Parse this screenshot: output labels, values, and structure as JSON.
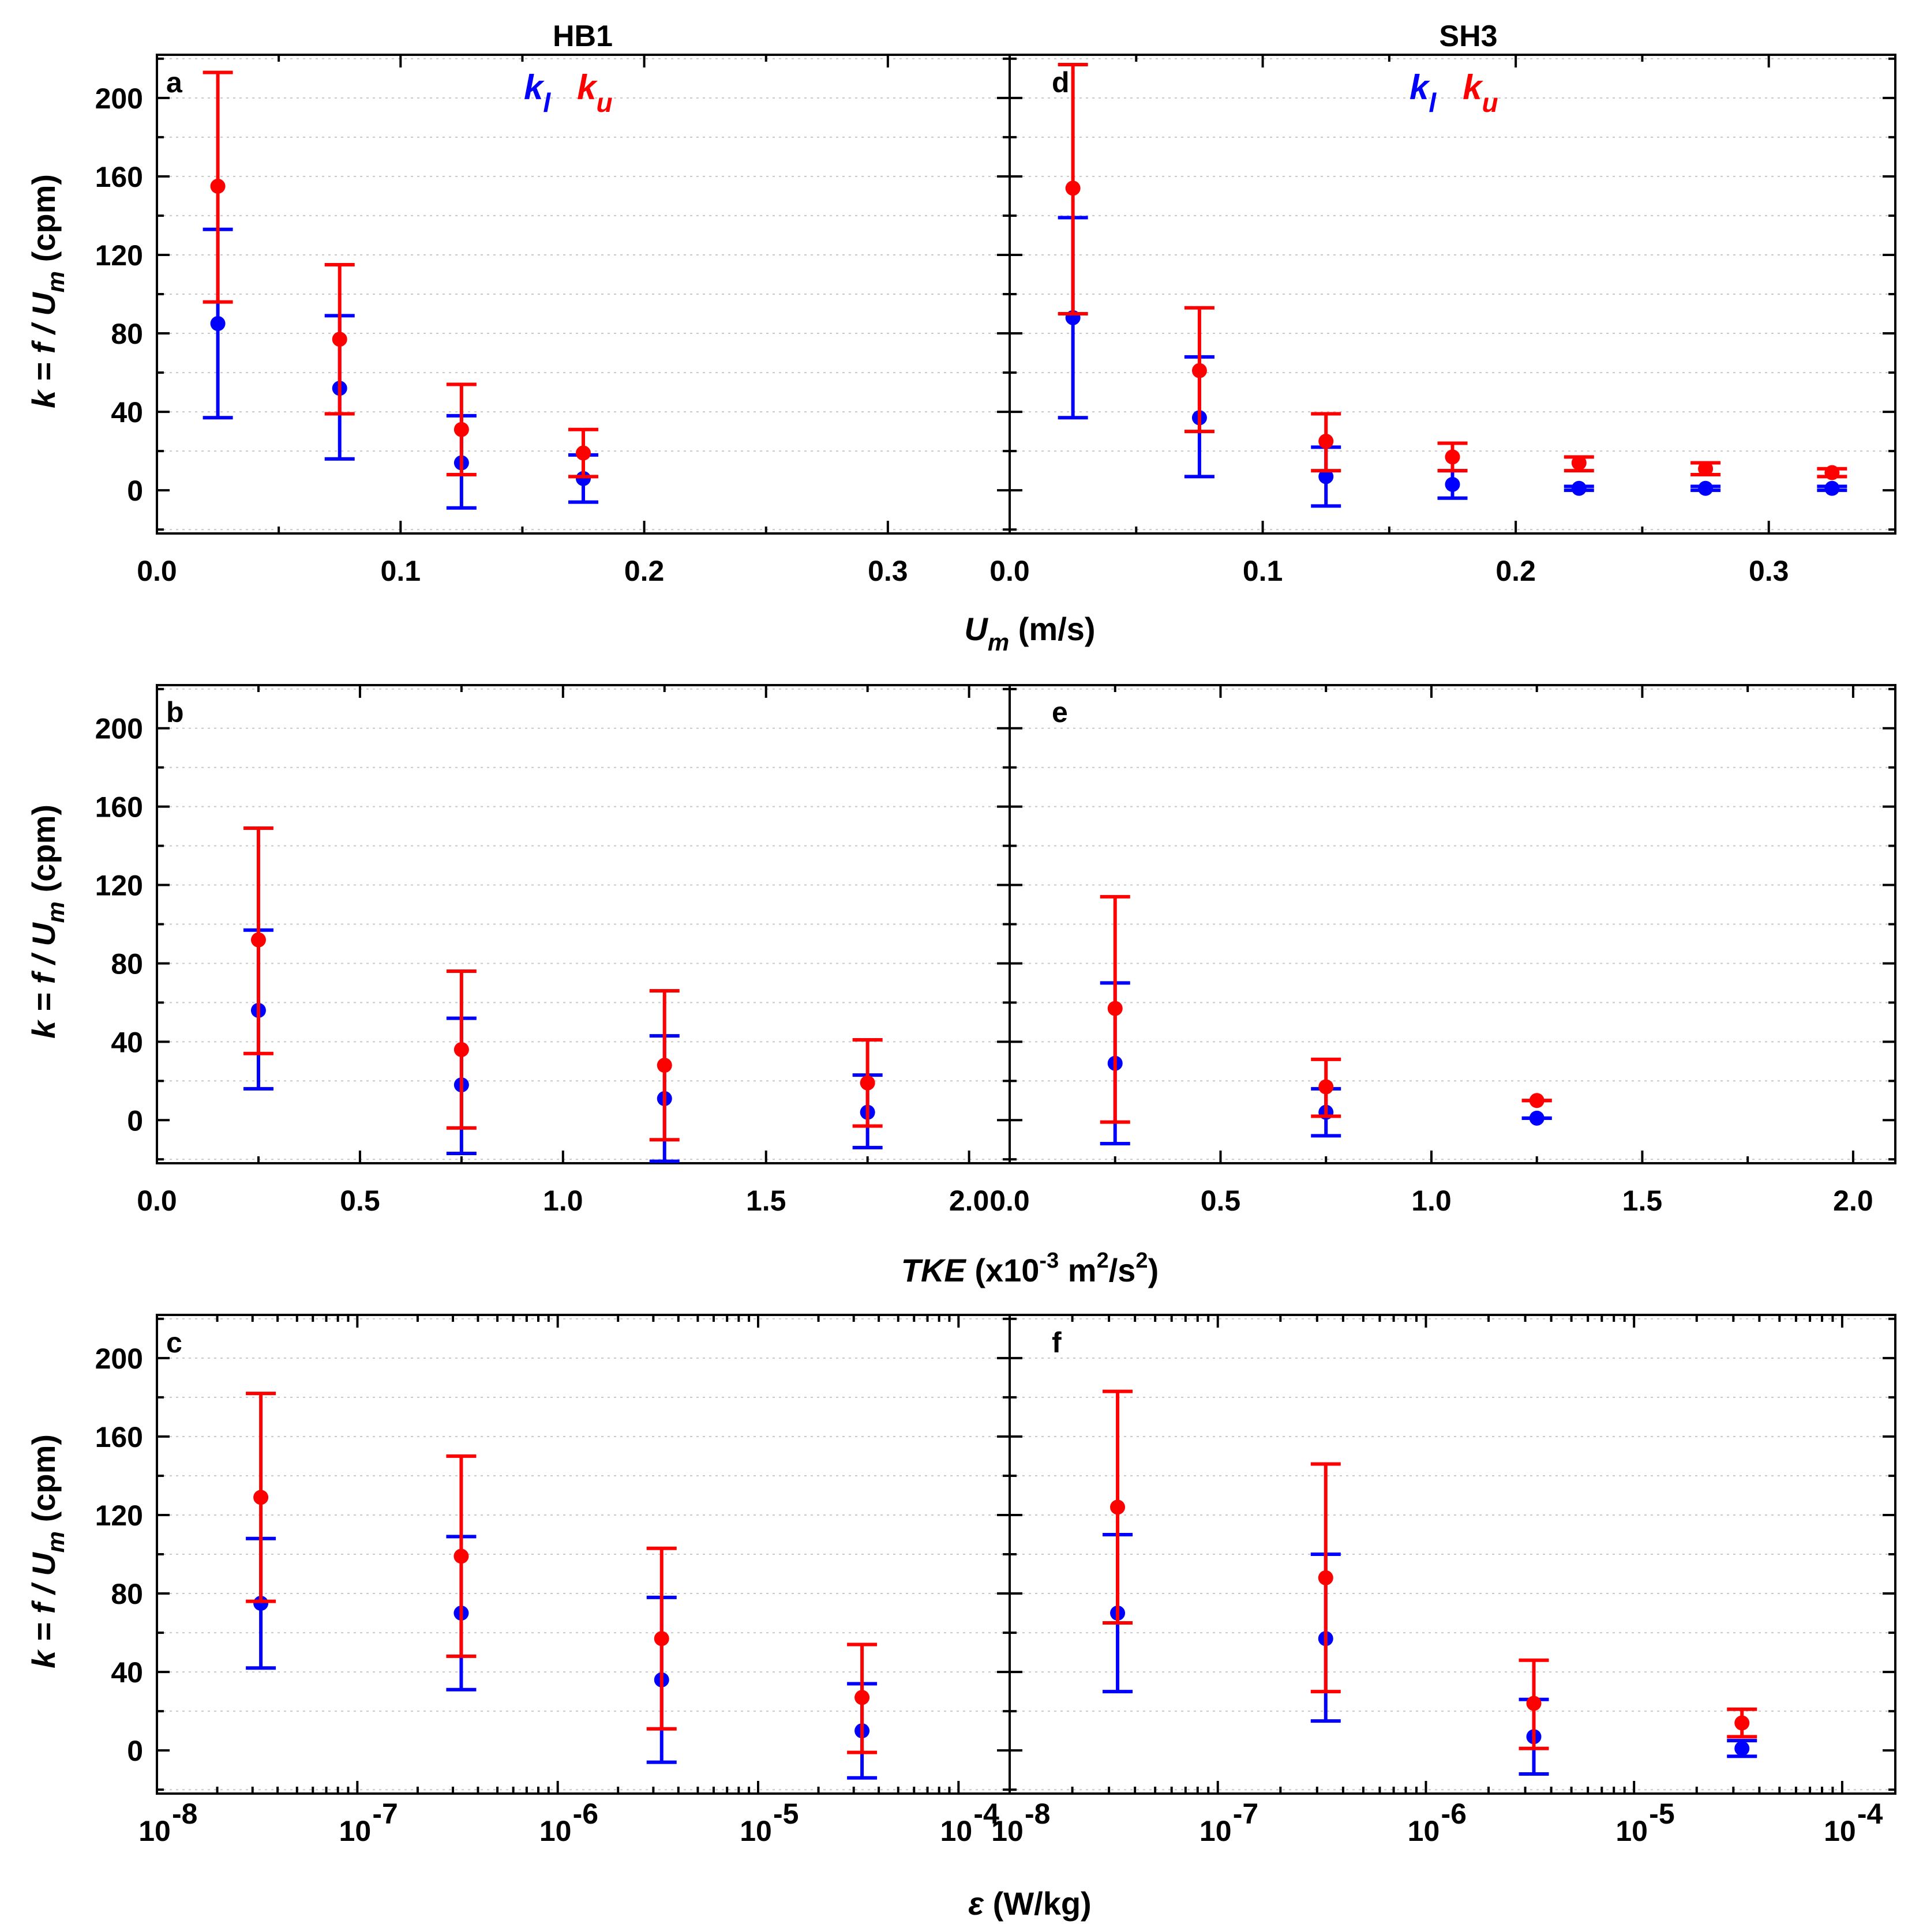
{
  "chart_data": [
    {
      "panel": "a",
      "type": "scatter",
      "column_title": "HB1",
      "xscale": "linear",
      "xlim": [
        0,
        0.35
      ],
      "ylim": [
        -22,
        222
      ],
      "xticks": [
        0.0,
        0.1,
        0.2,
        0.3
      ],
      "xtick_labels": [
        "0.0",
        "0.1",
        "0.2",
        "0.3"
      ],
      "yticks": [
        0,
        40,
        80,
        120,
        160,
        200
      ],
      "ytick_labels": [
        "0",
        "40",
        "80",
        "120",
        "160",
        "200"
      ],
      "ylabel": "k = f / Um (cpm)",
      "legend": [
        "kl",
        "ku"
      ],
      "series": [
        {
          "name": "kl",
          "color": "#0000ff",
          "x": [
            0.025,
            0.075,
            0.125,
            0.175
          ],
          "y": [
            85,
            52,
            14,
            6
          ],
          "lo": [
            37,
            16,
            -9,
            -6
          ],
          "hi": [
            133,
            89,
            38,
            18
          ]
        },
        {
          "name": "ku",
          "color": "#ff0000",
          "x": [
            0.025,
            0.075,
            0.125,
            0.175
          ],
          "y": [
            155,
            77,
            31,
            19
          ],
          "lo": [
            96,
            39,
            8,
            7
          ],
          "hi": [
            213,
            115,
            54,
            31
          ]
        }
      ]
    },
    {
      "panel": "d",
      "type": "scatter",
      "column_title": "SH3",
      "xscale": "linear",
      "xlim": [
        0,
        0.35
      ],
      "ylim": [
        -22,
        222
      ],
      "xticks": [
        0.0,
        0.1,
        0.2,
        0.3
      ],
      "xtick_labels": [
        "0.0",
        "0.1",
        "0.2",
        "0.3"
      ],
      "yticks": [
        0,
        40,
        80,
        120,
        160,
        200
      ],
      "ytick_labels": [],
      "legend": [
        "kl",
        "ku"
      ],
      "series": [
        {
          "name": "kl",
          "color": "#0000ff",
          "x": [
            0.025,
            0.075,
            0.125,
            0.175,
            0.225,
            0.275,
            0.325
          ],
          "y": [
            88,
            37,
            7,
            3,
            1,
            1,
            1
          ],
          "lo": [
            37,
            7,
            -8,
            -4,
            0,
            0,
            0
          ],
          "hi": [
            139,
            68,
            22,
            10,
            2,
            2,
            2
          ]
        },
        {
          "name": "ku",
          "color": "#ff0000",
          "x": [
            0.025,
            0.075,
            0.125,
            0.175,
            0.225,
            0.275,
            0.325
          ],
          "y": [
            154,
            61,
            25,
            17,
            14,
            11,
            9
          ],
          "lo": [
            90,
            30,
            10,
            10,
            10,
            8,
            7
          ],
          "hi": [
            217,
            93,
            39,
            24,
            17,
            14,
            11
          ]
        }
      ]
    },
    {
      "panel": "b",
      "type": "scatter",
      "xscale": "linear",
      "xlim": [
        0,
        2.1
      ],
      "ylim": [
        -22,
        222
      ],
      "xticks": [
        0.0,
        0.5,
        1.0,
        1.5,
        2.0
      ],
      "xtick_labels": [
        "0.0",
        "0.5",
        "1.0",
        "1.5",
        "2.0"
      ],
      "yticks": [
        0,
        40,
        80,
        120,
        160,
        200
      ],
      "ytick_labels": [
        "0",
        "40",
        "80",
        "120",
        "160",
        "200"
      ],
      "ylabel": "k = f / Um (cpm)",
      "series": [
        {
          "name": "kl",
          "color": "#0000ff",
          "x": [
            0.25,
            0.75,
            1.25,
            1.75
          ],
          "y": [
            56,
            18,
            11,
            4
          ],
          "lo": [
            16,
            -17,
            -21,
            -14
          ],
          "hi": [
            97,
            52,
            43,
            23
          ]
        },
        {
          "name": "ku",
          "color": "#ff0000",
          "x": [
            0.25,
            0.75,
            1.25,
            1.75
          ],
          "y": [
            92,
            36,
            28,
            19
          ],
          "lo": [
            34,
            -4,
            -10,
            -3
          ],
          "hi": [
            149,
            76,
            66,
            41
          ]
        }
      ]
    },
    {
      "panel": "e",
      "type": "scatter",
      "xscale": "linear",
      "xlim": [
        0,
        2.1
      ],
      "ylim": [
        -22,
        222
      ],
      "xticks": [
        0.0,
        0.5,
        1.0,
        1.5,
        2.0
      ],
      "xtick_labels": [
        "0.0",
        "0.5",
        "1.0",
        "1.5",
        "2.0"
      ],
      "yticks": [
        0,
        40,
        80,
        120,
        160,
        200
      ],
      "ytick_labels": [],
      "series": [
        {
          "name": "kl",
          "color": "#0000ff",
          "x": [
            0.25,
            0.75,
            1.25
          ],
          "y": [
            29,
            4,
            1
          ],
          "lo": [
            -12,
            -8,
            1
          ],
          "hi": [
            70,
            16,
            1
          ]
        },
        {
          "name": "ku",
          "color": "#ff0000",
          "x": [
            0.25,
            0.75,
            1.25
          ],
          "y": [
            57,
            17,
            10
          ],
          "lo": [
            -1,
            2,
            10
          ],
          "hi": [
            114,
            31,
            10
          ]
        }
      ]
    },
    {
      "panel": "c",
      "type": "scatter",
      "xscale": "log",
      "xlim": [
        1e-08,
        0.00018
      ],
      "ylim": [
        -22,
        222
      ],
      "xticks": [
        1e-08,
        1e-07,
        1e-06,
        1e-05,
        0.0001
      ],
      "xtick_labels": [
        "10",
        "10",
        "10",
        "10",
        "10"
      ],
      "xtick_exponents": [
        "-8",
        "-7",
        "-6",
        "-5",
        "-4"
      ],
      "yticks": [
        0,
        40,
        80,
        120,
        160,
        200
      ],
      "ytick_labels": [
        "0",
        "40",
        "80",
        "120",
        "160",
        "200"
      ],
      "ylabel": "k = f / Um (cpm)",
      "series": [
        {
          "name": "kl",
          "color": "#0000ff",
          "x": [
            3.3e-08,
            3.3e-07,
            3.3e-06,
            3.3e-05
          ],
          "y": [
            75,
            70,
            36,
            10
          ],
          "lo": [
            42,
            31,
            -6,
            -14
          ],
          "hi": [
            108,
            109,
            78,
            34
          ]
        },
        {
          "name": "ku",
          "color": "#ff0000",
          "x": [
            3.3e-08,
            3.3e-07,
            3.3e-06,
            3.3e-05
          ],
          "y": [
            129,
            99,
            57,
            27
          ],
          "lo": [
            76,
            48,
            11,
            -1
          ],
          "hi": [
            182,
            150,
            103,
            54
          ]
        }
      ]
    },
    {
      "panel": "f",
      "type": "scatter",
      "xscale": "log",
      "xlim": [
        1e-08,
        0.00018
      ],
      "ylim": [
        -22,
        222
      ],
      "xticks": [
        1e-08,
        1e-07,
        1e-06,
        1e-05,
        0.0001
      ],
      "xtick_labels": [
        "10",
        "10",
        "10",
        "10",
        "10"
      ],
      "xtick_exponents": [
        "-8",
        "-7",
        "-6",
        "-5",
        "-4"
      ],
      "yticks": [
        0,
        40,
        80,
        120,
        160,
        200
      ],
      "ytick_labels": [],
      "series": [
        {
          "name": "kl",
          "color": "#0000ff",
          "x": [
            3.3e-08,
            3.3e-07,
            3.3e-06,
            3.3e-05
          ],
          "y": [
            70,
            57,
            7,
            1
          ],
          "lo": [
            30,
            15,
            -12,
            -3
          ],
          "hi": [
            110,
            100,
            26,
            5
          ]
        },
        {
          "name": "ku",
          "color": "#ff0000",
          "x": [
            3.3e-08,
            3.3e-07,
            3.3e-06,
            3.3e-05
          ],
          "y": [
            124,
            88,
            24,
            14
          ],
          "lo": [
            65,
            30,
            1,
            7
          ],
          "hi": [
            183,
            146,
            46,
            21
          ]
        }
      ]
    }
  ],
  "labels": {
    "col_left": "HB1",
    "col_right": "SH3",
    "panel_a": "a",
    "panel_b": "b",
    "panel_c": "c",
    "panel_d": "d",
    "panel_e": "e",
    "panel_f": "f",
    "ylabel_main": "k = f / U",
    "ylabel_sub": "m",
    "ylabel_unit": " (cpm)",
    "legend_k": "k",
    "legend_l": "l",
    "legend_u": "u",
    "xlabel_top_main": "U",
    "xlabel_top_sub": "m",
    "xlabel_top_unit": " (m/s)",
    "xlabel_mid_main": "TKE",
    "xlabel_mid_text": " (x10",
    "xlabel_mid_exp": "-3",
    "xlabel_mid_m": " m",
    "xlabel_mid_exp2": "2",
    "xlabel_mid_s": "/s",
    "xlabel_mid_exp3": "2",
    "xlabel_mid_close": ")",
    "xlabel_bot_main": "ε",
    "xlabel_bot_unit": " (W/kg)"
  },
  "colors": {
    "kl": "#0000ff",
    "ku": "#ff0000",
    "grid": "#c8c8c8",
    "axis": "#000000"
  }
}
